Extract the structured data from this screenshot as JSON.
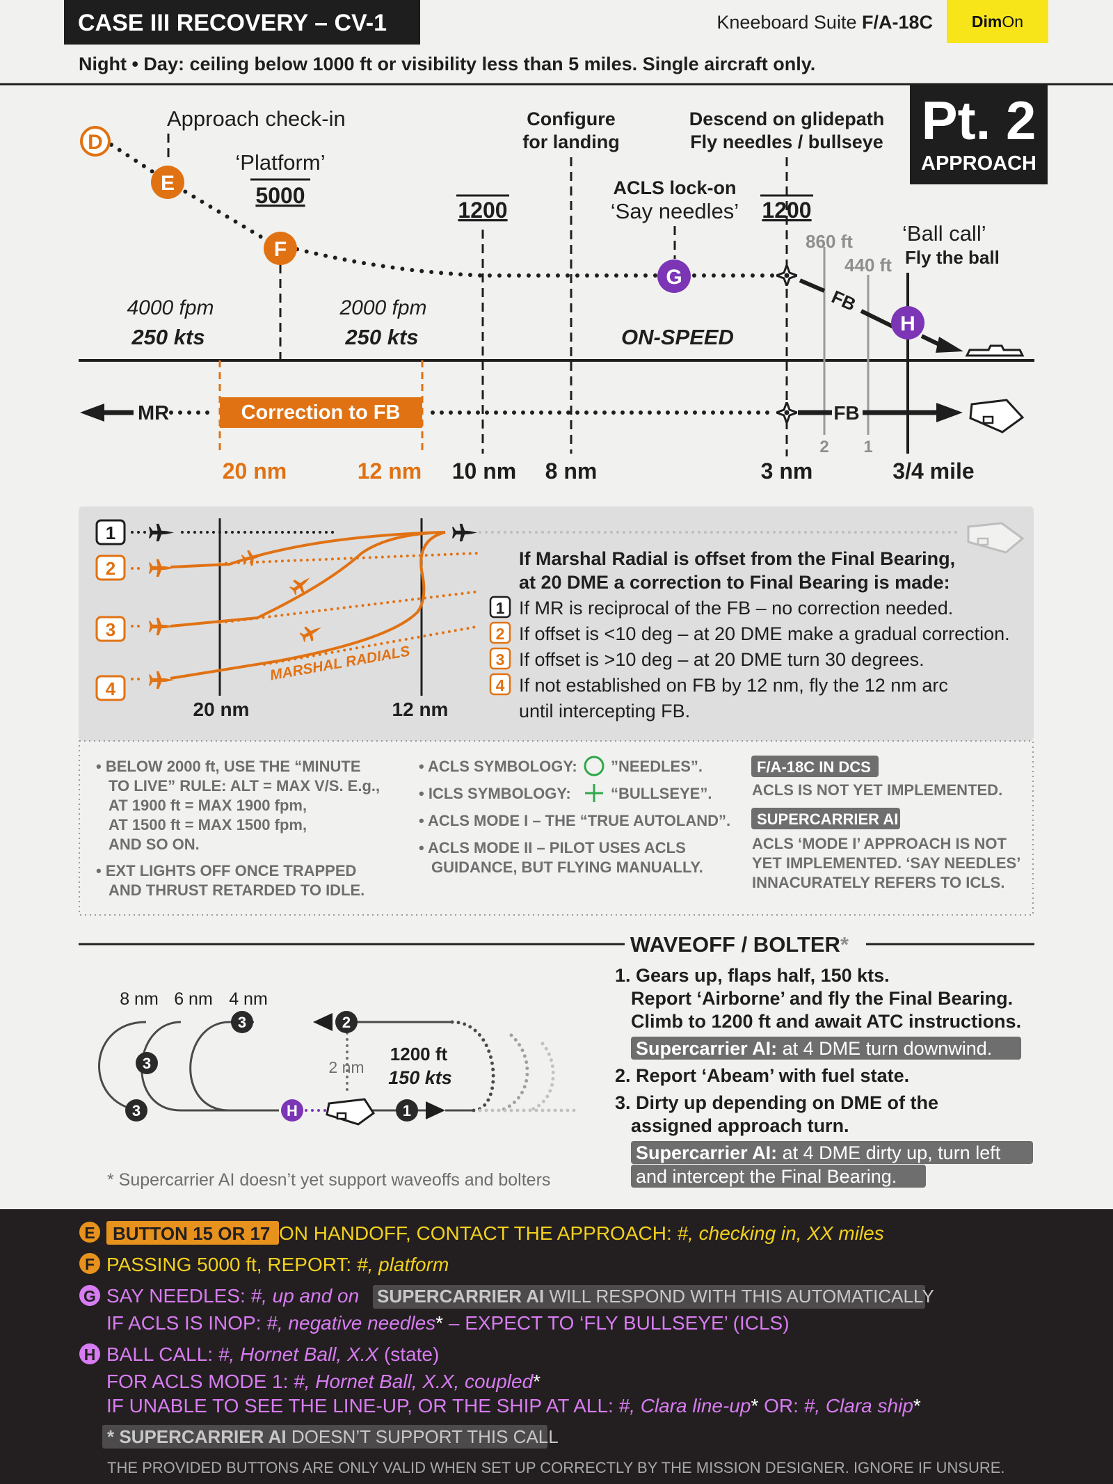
{
  "header": {
    "title": "CASE III RECOVERY – CV-1",
    "suite_prefix": "Kneeboard Suite ",
    "suite_aircraft": "F/A-18C",
    "dim_toggle": {
      "dim": "Dim",
      "on": "On"
    },
    "subtitle": "Night • Day: ceiling below 1000 ft or visibility less than 5 miles. Single aircraft only.",
    "part": "Pt. 2",
    "part_label": "APPROACH"
  },
  "profile": {
    "points": {
      "D": "D",
      "E": "E",
      "F": "F",
      "G": "G",
      "H": "H"
    },
    "approach_checkin": "Approach check-in",
    "platform": "‘Platform’",
    "alt_5000": "5000",
    "alt_1200_a": "1200",
    "alt_1200_b": "1200",
    "configure_1": "Configure",
    "configure_2": "for landing",
    "descend_1": "Descend on glidepath",
    "descend_2": "Fly needles / bullseye",
    "acls_lockon": "ACLS lock-on",
    "say_needles": "‘Say needles’",
    "ft_860": "860 ft",
    "ft_440": "440 ft",
    "ball_call": "‘Ball call’",
    "fly_the_ball": "Fly the ball",
    "fpm_4000": "4000 fpm",
    "kts_250_a": "250 kts",
    "fpm_2000": "2000 fpm",
    "kts_250_b": "250 kts",
    "on_speed": "ON-SPEED",
    "fb_glide": "FB",
    "mr": "MR",
    "correction": "Correction to FB",
    "fb_plan": "FB",
    "tick_2": "2",
    "tick_1": "1",
    "dist_20": "20 nm",
    "dist_12": "12 nm",
    "dist_10": "10 nm",
    "dist_8": "8 nm",
    "dist_3": "3 nm",
    "dist_34": "3/4 mile"
  },
  "correction_panel": {
    "case_nums": [
      "1",
      "2",
      "3",
      "4"
    ],
    "marshal_radials": "MARSHAL RADIALS",
    "d20": "20 nm",
    "d12": "12 nm",
    "heading_1": "If Marshal Radial is offset from the Final Bearing,",
    "heading_2": "at 20 DME a correction to Final Bearing is made:",
    "rules": [
      {
        "num": "1",
        "text": "If MR is reciprocal of the FB – no correction needed."
      },
      {
        "num": "2",
        "text": "If offset is <10 deg – at 20 DME make a gradual correction."
      },
      {
        "num": "3",
        "text": "If offset is >10 deg – at 20 DME turn 30 degrees."
      },
      {
        "num": "4",
        "text": "If not established on FB by 12 nm, fly the 12 nm arc"
      }
    ],
    "rule_4_cont": "until intercepting FB."
  },
  "notes": {
    "col1": [
      "• BELOW 2000 ft, USE THE “MINUTE",
      "TO LIVE” RULE: ALT = MAX V/S. E.g.,",
      "AT 1900 ft = MAX 1900 fpm,",
      "AT 1500 ft = MAX 1500 fpm,",
      "AND SO ON.",
      "• EXT LIGHTS OFF ONCE TRAPPED",
      "AND THRUST RETARDED TO IDLE."
    ],
    "acls_sym_label": "• ACLS SYMBOLOGY:",
    "acls_sym_value": "”NEEDLES”.",
    "icls_sym_label": "• ICLS SYMBOLOGY:",
    "icls_sym_value": "“BULLSEYE”.",
    "mode1": "• ACLS MODE I – THE “TRUE AUTOLAND”.",
    "mode2_1": "• ACLS MODE II – PILOT USES ACLS",
    "mode2_2": "GUIDANCE, BUT FLYING MANUALLY.",
    "dcs_tag": "F/A-18C IN DCS",
    "dcs_text": "ACLS IS NOT YET IMPLEMENTED.",
    "sc_tag": "SUPERCARRIER AI",
    "sc_text": [
      "ACLS ‘MODE I’ APPROACH IS NOT",
      "YET IMPLEMENTED. ‘SAY NEEDLES’",
      "INNACURATELY REFERS TO ICLS."
    ]
  },
  "waveoff": {
    "title": "WAVEOFF / BOLTER",
    "title_star": "*",
    "d8": "8 nm",
    "d6": "6 nm",
    "d4": "4 nm",
    "two_nm": "2 nm",
    "alt": "1200 ft",
    "spd": "150 kts",
    "nums": {
      "one": "1",
      "two": "2",
      "three": "3"
    },
    "h": "H",
    "footnote": "* Supercarrier AI doesn’t yet support waveoffs and bolters",
    "steps": [
      "1. Gears up, flaps half, 150 kts.",
      "Report ‘Airborne’ and fly the Final Bearing.",
      "Climb to 1200 ft and await ATC instructions.",
      "2. Report ‘Abeam’ with fuel state.",
      "3. Dirty up depending on DME of the",
      "assigned approach turn."
    ],
    "sc_1_bold": "Supercarrier AI:",
    "sc_1_text": " at 4 DME turn downwind.",
    "sc_2_bold": "Supercarrier AI:",
    "sc_2_text": " at 4 DME dirty up, turn left",
    "sc_2_cont": "and intercept the Final Bearing."
  },
  "radio": {
    "e_button": "BUTTON 15 OR 17",
    "e_text": " ON HANDOFF, CONTACT THE APPROACH: ",
    "e_call": "#, checking in, XX miles",
    "f_text": "PASSING 5000 ft, REPORT: ",
    "f_call": "#, platform",
    "g_text": "SAY NEEDLES: ",
    "g_call": "#, up and on",
    "g_tag": "SUPERCARRIER AI",
    "g_tag_text": " WILL RESPOND WITH THIS AUTOMATICALLY",
    "g2_text": "IF ACLS IS INOP: ",
    "g2_call": "#, negative needles",
    "g2_rest": " – EXPECT TO ‘FLY BULLSEYE’ (ICLS)",
    "h_text": "BALL CALL: ",
    "h_call": "#, Hornet Ball, X.X",
    "h_rest": " (state)",
    "h2_text": "FOR ACLS MODE 1: ",
    "h2_call": "#, Hornet Ball, X.X, coupled",
    "h3_text": "IF UNABLE TO SEE THE LINE-UP, OR THE SHIP AT ALL: ",
    "h3_call1": "#, Clara line-up",
    "h3_or": " OR: ",
    "h3_call2": "#, Clara ship",
    "star": "*",
    "foot_bold": "* SUPERCARRIER AI",
    "foot_text": " DOESN’T SUPPORT THIS CALL",
    "disclaimer": "THE PROVIDED BUTTONS ARE ONLY VALID WHEN SET UP CORRECTLY BY THE MISSION DESIGNER. IGNORE IF UNSURE."
  },
  "colors": {
    "orange": "#e07214",
    "purple": "#7b35b5",
    "black": "#1e1e1e",
    "grey": "#8f8f8f",
    "yellow": "#f7e519",
    "radio_yellow": "#f2d01e",
    "radio_orange": "#e8921e",
    "radio_purple": "#d77cf2"
  }
}
